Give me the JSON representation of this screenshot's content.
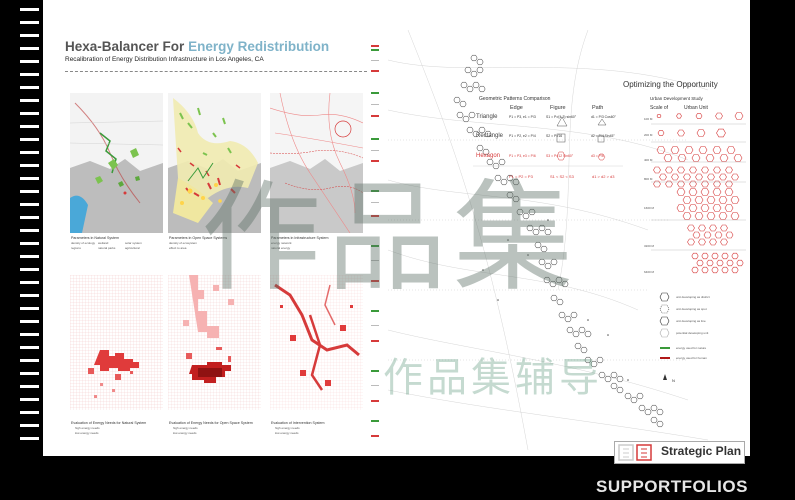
{
  "title": {
    "part1": "Hexa-Balancer For",
    "part2": "Energy Redistribution"
  },
  "subtitle": "Recalibration of Energy Distribution Infrastructure in Los Angeles, CA",
  "panels": {
    "top_captions": [
      "Parameters in Natural System",
      "Parameters in Open Space Systems",
      "Parameters in Infrastructure System"
    ],
    "bottom_captions": [
      "Evaluation of Energy Needs for Natural System",
      "Evaluation of Energy Needs for Open Space System",
      "Evaluation of Intervention System"
    ],
    "legend_a": [
      "density of ecology",
      "wetland",
      "natural parks",
      "solar system",
      "agricultural",
      "regions",
      "riparian"
    ],
    "legend_b": [
      "density of ecosystem",
      "effect to area"
    ],
    "legend_c": [
      "energy network",
      "natural energy",
      "urban expansion"
    ],
    "legend_bottom": [
      "high energy needs",
      "low energy needs"
    ]
  },
  "geometry": {
    "heading": "Geometric Patterns Comparison",
    "columns": [
      "Edge",
      "Figure",
      "Path"
    ],
    "rows": [
      {
        "name": "Triangle",
        "edge": "P1 = P3, e1 = P/3",
        "figure": "S1 = P²/(4·3)·sin60°",
        "path": "d1 = P/3 Cos60°"
      },
      {
        "name": "Rectangle",
        "edge": "P1 = P2, e2 = P/4",
        "figure": "S2 = P²/16",
        "path": "d2 = P/4 Sin45°"
      },
      {
        "name": "Hexagon",
        "edge": "P1 = P3, e3 = P/6",
        "figure": "S3 = P²/12 Sin60°",
        "path": "d3 = P/6"
      }
    ],
    "summary": {
      "edge": "P1 = P2 = P3",
      "figure": "S1 < S2 < S3",
      "path": "d1 > d2 > d3"
    }
  },
  "opportunity": {
    "heading": "Optimizing the Opportunity",
    "study": "Urban Development Study",
    "scale_label": "Scale of",
    "unit_label": "Urban Unit",
    "scale_rows": [
      "100 M",
      "200 M",
      "400 M",
      "800 M",
      "1600 M",
      "3200 M",
      "6400 M"
    ]
  },
  "legend_right": [
    "unit developing as district",
    "unit developing as spot",
    "unit developing as line",
    "potential developing unit",
    "energy used for nature",
    "energy used for human"
  ],
  "north": "N",
  "watermark": {
    "big": "作品集",
    "small": "作品集辅导"
  },
  "badge": {
    "label": "Strategic Plan"
  },
  "brand": "SUPPORTFOLIOS",
  "colors": {
    "accent": "#7fb3c9",
    "red": "#d63a3a",
    "green": "#3a9a3a",
    "watermark": "#5a6e64"
  }
}
